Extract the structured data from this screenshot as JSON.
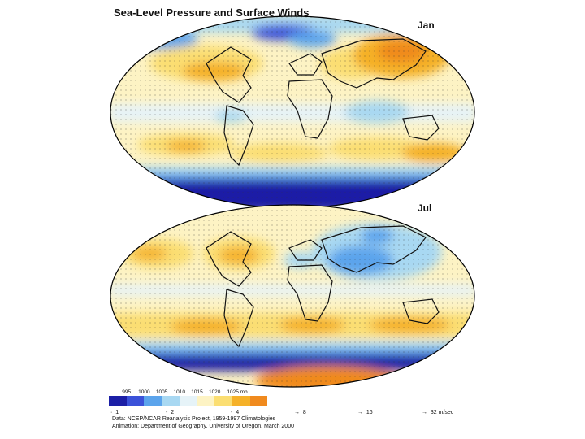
{
  "title": "Sea-Level Pressure and Surface Winds",
  "maps": [
    {
      "month": "Jan"
    },
    {
      "month": "Jul"
    }
  ],
  "legend": {
    "pressure_labels": [
      "995",
      "1000",
      "1005",
      "1010",
      "1015",
      "1020",
      "1025 mb"
    ],
    "colors": [
      "#1c1fa6",
      "#3b52d9",
      "#5ba4ec",
      "#a8d8f2",
      "#e6f3f8",
      "#fdf3c4",
      "#fbde72",
      "#f5b128",
      "#f08a1e"
    ],
    "wind_keys": [
      "1",
      "2",
      "4",
      "8",
      "16",
      "32 m/sec"
    ]
  },
  "credits": {
    "data": "Data:  NCEP/NCAR Reanalysis Project, 1959-1997 Climatologies",
    "animation": "Animation:  Department of Geography, University of Oregon, March 2000"
  }
}
